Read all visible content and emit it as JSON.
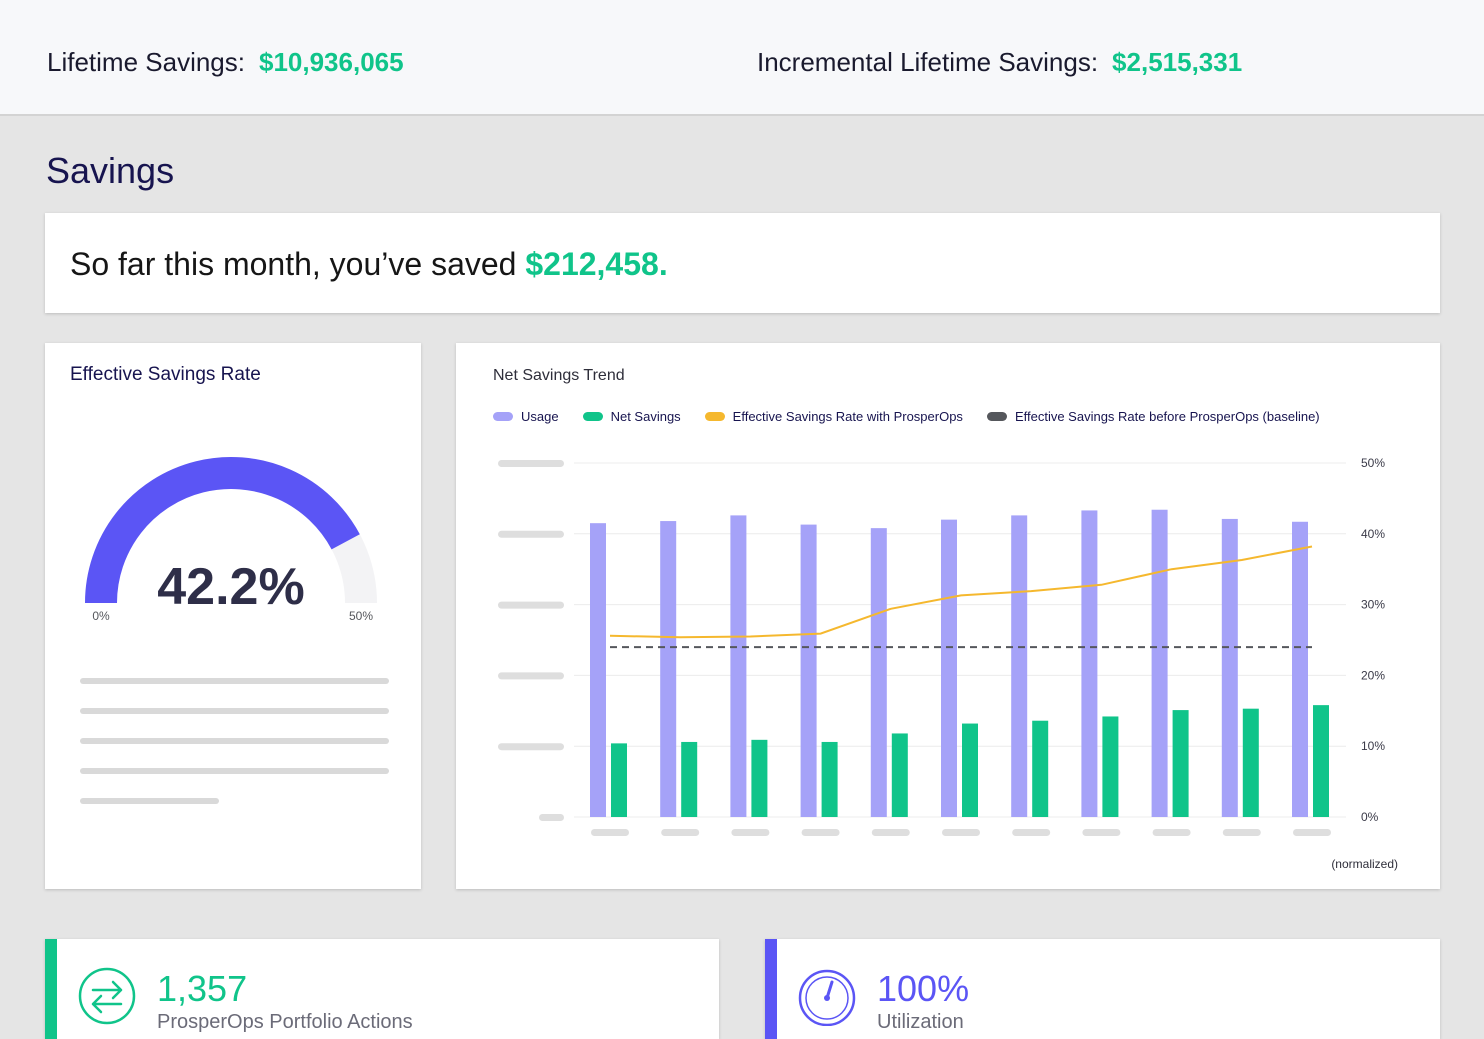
{
  "header": {
    "lifetime_label": "Lifetime Savings:",
    "lifetime_value": "$10,936,065",
    "incremental_label": "Incremental Lifetime Savings:",
    "incremental_value": "$2,515,331"
  },
  "page": {
    "title": "Savings"
  },
  "banner": {
    "text": "So far this month, you’ve saved ",
    "amount": "$212,458."
  },
  "esr_card": {
    "title": "Effective Savings Rate",
    "value": "42.2%",
    "rate": 42.2,
    "min_label": "0%",
    "max_label": "50%",
    "gauge_max": 50,
    "gauge_color": "#5b55f5",
    "track_color": "#f3f3f5"
  },
  "trend_card": {
    "title": "Net Savings Trend",
    "note": "(normalized)",
    "legend": [
      {
        "label": "Usage",
        "color": "#a5a2f8"
      },
      {
        "label": "Net Savings",
        "color": "#10c48a"
      },
      {
        "label": "Effective Savings Rate with ProsperOps",
        "color": "#f5b82e"
      },
      {
        "label": "Effective Savings Rate before ProsperOps (baseline)",
        "color": "#55575c"
      }
    ]
  },
  "chart_data": {
    "type": "bar",
    "categories_count": 11,
    "series": [
      {
        "name": "Usage",
        "values": [
          41.5,
          41.8,
          42.6,
          41.3,
          40.8,
          42.0,
          42.6,
          43.3,
          43.4,
          42.1,
          41.7
        ],
        "color": "#a5a2f8"
      },
      {
        "name": "Net Savings",
        "values": [
          10.4,
          10.6,
          10.9,
          10.6,
          11.8,
          13.2,
          13.6,
          14.2,
          15.1,
          15.3,
          15.8
        ],
        "color": "#10c48a"
      },
      {
        "name": "Effective Savings Rate with ProsperOps",
        "type": "line",
        "values": [
          25.6,
          25.4,
          25.5,
          25.9,
          29.4,
          31.3,
          31.9,
          32.8,
          35.0,
          36.3,
          38.2
        ],
        "color": "#f5b82e"
      },
      {
        "name": "Effective Savings Rate before ProsperOps (baseline)",
        "type": "line",
        "style": "dashed",
        "values": [
          24.0,
          24.0,
          24.0,
          24.0,
          24.0,
          24.0,
          24.0,
          24.0,
          24.0,
          24.0,
          24.0
        ],
        "color": "#55575c"
      }
    ],
    "y_right_ticks": [
      "50%",
      "40%",
      "30%",
      "20%",
      "10%",
      "0%"
    ],
    "ylim": [
      0,
      50
    ],
    "grid": true,
    "legend_position": "top"
  },
  "metrics": [
    {
      "value": "1,357",
      "label": "ProsperOps Portfolio Actions",
      "icon": "exchange-arrows-icon",
      "color": "#10c48a"
    },
    {
      "value": "100%",
      "label": "Utilization",
      "icon": "gauge-icon",
      "color": "#5b55f5"
    }
  ]
}
